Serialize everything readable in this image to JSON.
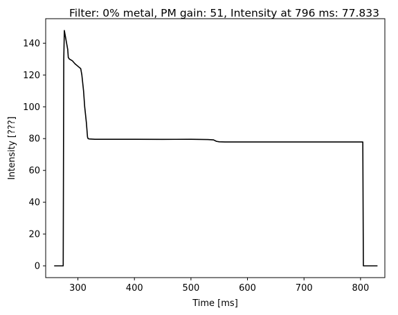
{
  "chart_data": {
    "type": "line",
    "title": "Filter: 0% metal, PM gain: 51, Intensity at 796 ms: 77.833",
    "xlabel": "Time [ms]",
    "ylabel": "Intensity [???]",
    "xlim": [
      243,
      843
    ],
    "ylim": [
      -7.4,
      155.4
    ],
    "xticks": [
      300,
      400,
      500,
      600,
      700,
      800
    ],
    "yticks": [
      0,
      20,
      40,
      60,
      80,
      100,
      120,
      140
    ],
    "grid": false,
    "line_color": "#000000",
    "series": [
      {
        "x": [
          258,
          274,
          275,
          276,
          278,
          280,
          282,
          283,
          285,
          290,
          295,
          300,
          305,
          307,
          310,
          312,
          315,
          317,
          318,
          320,
          325,
          330,
          350,
          400,
          450,
          500,
          530,
          540,
          545,
          550,
          560,
          600,
          650,
          700,
          750,
          800,
          804,
          805,
          806,
          830
        ],
        "y": [
          0,
          0,
          130,
          148,
          144,
          140,
          136,
          131,
          130,
          129,
          127,
          125.5,
          124,
          120,
          110,
          100,
          90,
          81,
          80,
          79.8,
          79.7,
          79.6,
          79.6,
          79.6,
          79.5,
          79.6,
          79.4,
          79.2,
          78.3,
          78,
          77.9,
          77.9,
          77.9,
          77.9,
          77.9,
          77.9,
          77.9,
          0,
          0,
          0
        ]
      }
    ]
  }
}
